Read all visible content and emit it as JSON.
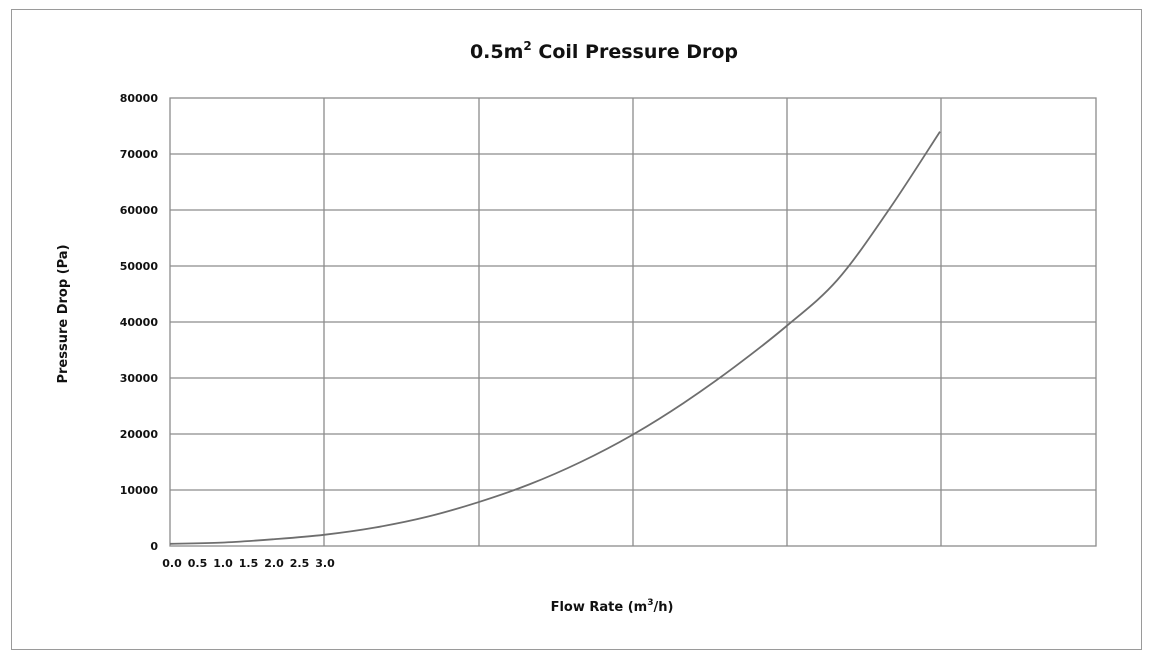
{
  "chart_data": {
    "type": "line",
    "title": "0.5m",
    "title_superscript": "2",
    "title_suffix": " Coil Pressure Drop",
    "xlabel": "Flow Rate (m",
    "xlabel_superscript": "3",
    "xlabel_suffix": "/h)",
    "ylabel": "Pressure Drop (Pa)",
    "x_tick_labels": [
      "0.0",
      "0.5",
      "1.0",
      "1.5",
      "2.0",
      "2.5",
      "3.0"
    ],
    "y_ticks": [
      0,
      10000,
      20000,
      30000,
      40000,
      50000,
      60000,
      70000,
      80000
    ],
    "ylim": [
      0,
      80000
    ],
    "grid": true,
    "series": [
      {
        "x": [
          0,
          1,
          2,
          3,
          4,
          5,
          6,
          7,
          8,
          9,
          10,
          11,
          12,
          13,
          14,
          15
        ],
        "values": [
          400,
          600,
          1200,
          2000,
          3300,
          5200,
          7800,
          11000,
          15000,
          19800,
          25500,
          32000,
          39200,
          47500,
          60000,
          74000
        ]
      }
    ],
    "colors": {
      "line": "#6e6e6e",
      "grid": "#8c8c8c",
      "text": "#111111"
    }
  }
}
